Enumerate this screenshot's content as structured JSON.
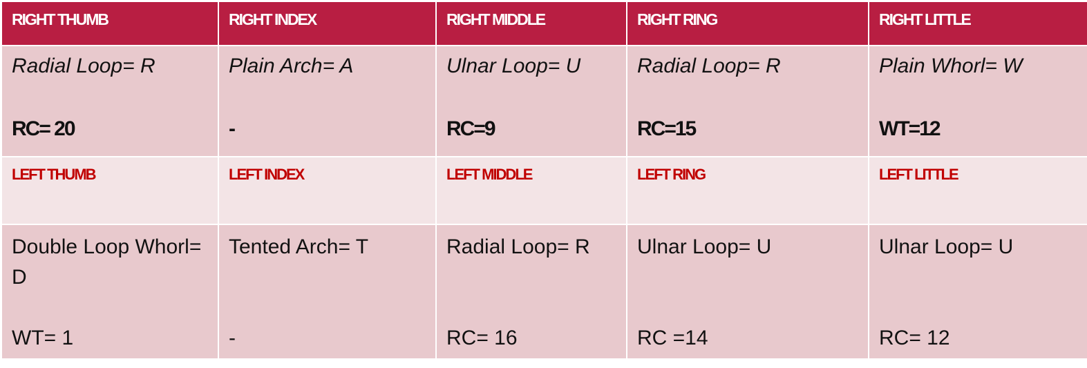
{
  "right_headers": [
    "RIGHT THUMB",
    "RIGHT INDEX",
    "RIGHT MIDDLE",
    "RIGHT RING",
    "RIGHT LITTLE"
  ],
  "right_types": [
    "Radial Loop= R",
    "Plain Arch= A",
    "Ulnar Loop= U",
    "Radial Loop= R",
    "Plain Whorl= W"
  ],
  "right_values": [
    "RC= 20",
    "-",
    "RC=9",
    "RC=15",
    "WT=12"
  ],
  "left_headers": [
    "LEFT THUMB",
    "LEFT INDEX",
    "LEFT MIDDLE",
    "LEFT RING",
    "LEFT LITTLE"
  ],
  "left_types": [
    "Double Loop Whorl= D",
    "Tented Arch= T",
    "Radial Loop= R",
    "Ulnar Loop= U",
    "Ulnar Loop= U"
  ],
  "left_values": [
    "WT= 1",
    "-",
    "RC= 16",
    "RC =14",
    "RC= 12"
  ],
  "colors": {
    "header_bg": "#b81e42",
    "left_header_text": "#c00000",
    "row_dark": "#e8c9cd",
    "row_light": "#f3e4e6"
  }
}
